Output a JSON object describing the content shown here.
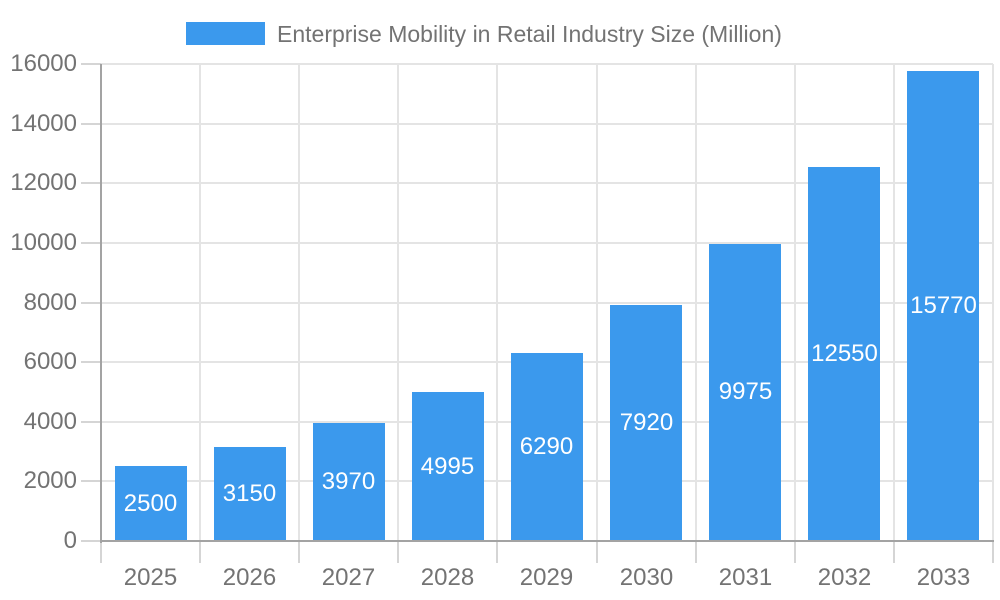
{
  "legend": {
    "label": "Enterprise Mobility in Retail Industry Size (Million)"
  },
  "chart_data": {
    "type": "bar",
    "title": "Enterprise Mobility in Retail Industry Size (Million)",
    "legend_entries": [
      "Enterprise Mobility in Retail Industry Size (Million)"
    ],
    "legend_position": "top-center",
    "categories": [
      "2025",
      "2026",
      "2027",
      "2028",
      "2029",
      "2030",
      "2031",
      "2032",
      "2033"
    ],
    "values": [
      2500,
      3150,
      3970,
      4995,
      6290,
      7920,
      9975,
      12550,
      15770
    ],
    "value_labels_shown": true,
    "xlabel": "",
    "ylabel": "",
    "ylim": [
      0,
      16000
    ],
    "yticks": [
      0,
      2000,
      4000,
      6000,
      8000,
      10000,
      12000,
      14000,
      16000
    ],
    "grid": true,
    "colors": {
      "bar": "#3b99ed",
      "axis_line": "#a3a3a3",
      "grid_line": "#e4e4e4",
      "tick_line": "#d5d5d5",
      "tick_label": "#737373",
      "legend_label": "#737373",
      "value_label": "#ffffff",
      "background": "#ffffff"
    }
  }
}
